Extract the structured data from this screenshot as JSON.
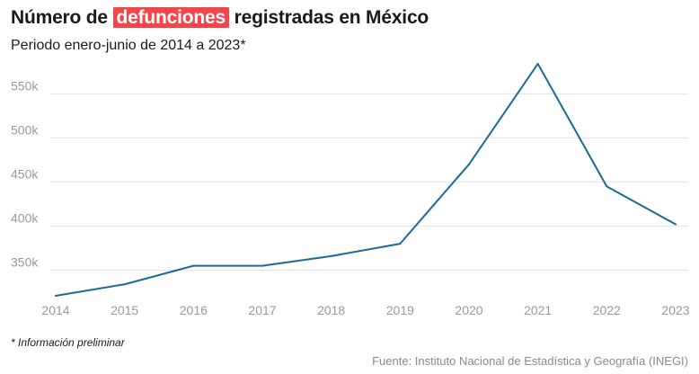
{
  "header": {
    "title_before": "Número de",
    "title_highlight": "defunciones",
    "title_after": "registradas en México",
    "subtitle": "Periodo enero-junio de 2014 a 2023*"
  },
  "footer": {
    "footnote": "* Información preliminar",
    "source": "Fuente: Instituto Nacional de Estadística y Geografía (INEGI)"
  },
  "colors": {
    "line": "#1d6a96",
    "highlight": "#f2464b",
    "grid": "#e3e3e3",
    "tick": "#9a9a9a"
  },
  "chart_data": {
    "type": "line",
    "title": "Número de defunciones registradas en México",
    "subtitle": "Periodo enero-junio de 2014 a 2023*",
    "xlabel": "",
    "ylabel": "",
    "categories": [
      "2014",
      "2015",
      "2016",
      "2017",
      "2018",
      "2019",
      "2020",
      "2021",
      "2022",
      "2023"
    ],
    "series": [
      {
        "values": [
          321000,
          334000,
          355000,
          355000,
          366000,
          380000,
          470000,
          584000,
          445000,
          402000
        ]
      }
    ],
    "yticks": [
      350000,
      400000,
      450000,
      500000,
      550000
    ],
    "ytick_labels": [
      "350k",
      "400k",
      "450k",
      "500k",
      "550k"
    ],
    "ylim": [
      322000,
      585000
    ],
    "grid": true,
    "legend": "none"
  }
}
